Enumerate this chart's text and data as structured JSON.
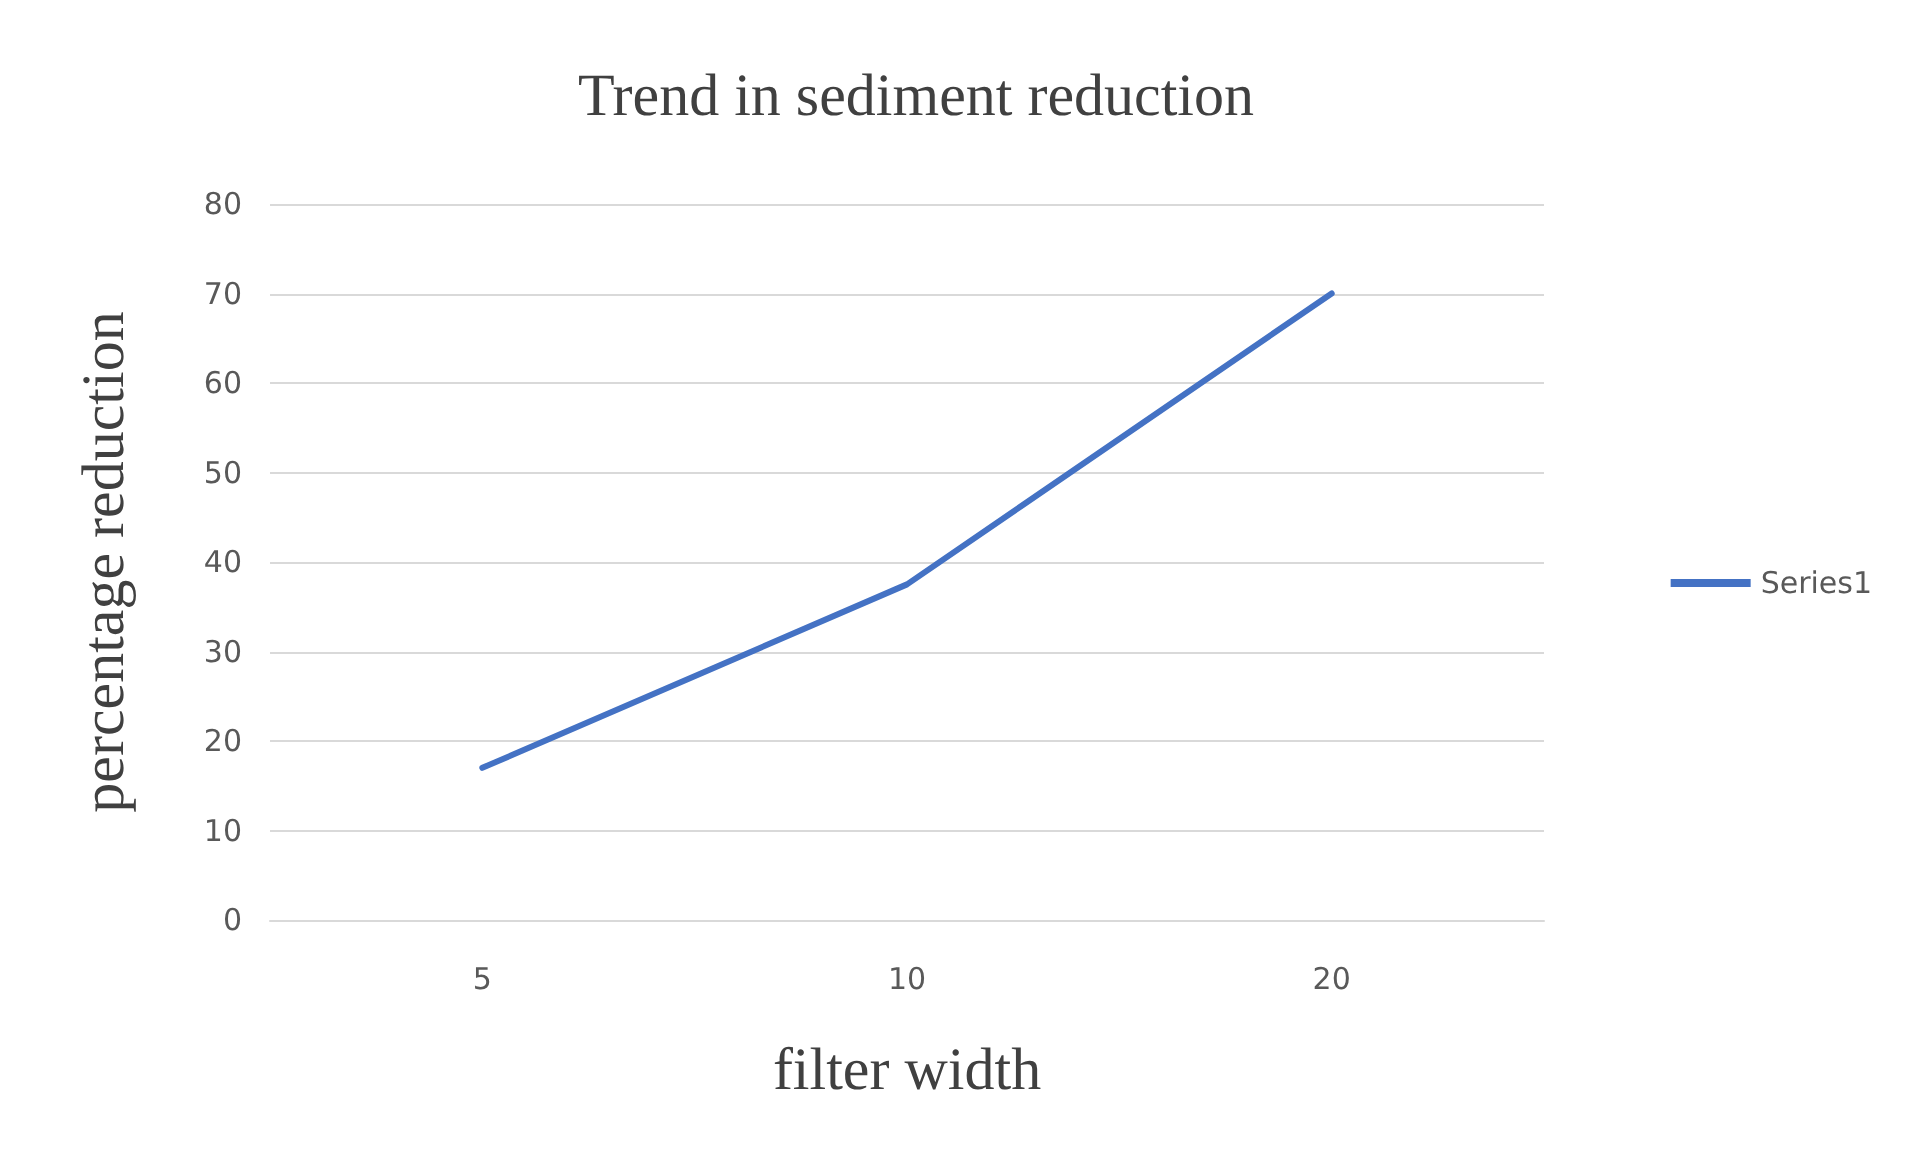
{
  "chart_data": {
    "type": "line",
    "title": "Trend in sediment reduction",
    "xlabel": "filter width",
    "ylabel": "percentage reduction",
    "categories": [
      "5",
      "10",
      "20"
    ],
    "series": [
      {
        "name": "Series1",
        "color": "#4472c4",
        "values": [
          17,
          37.5,
          70
        ]
      }
    ],
    "ylim": [
      0,
      80
    ],
    "yticks": [
      0,
      10,
      20,
      30,
      40,
      50,
      60,
      70,
      80
    ],
    "grid": "y",
    "legend": "right",
    "marker": "none",
    "line_style": "solid"
  }
}
